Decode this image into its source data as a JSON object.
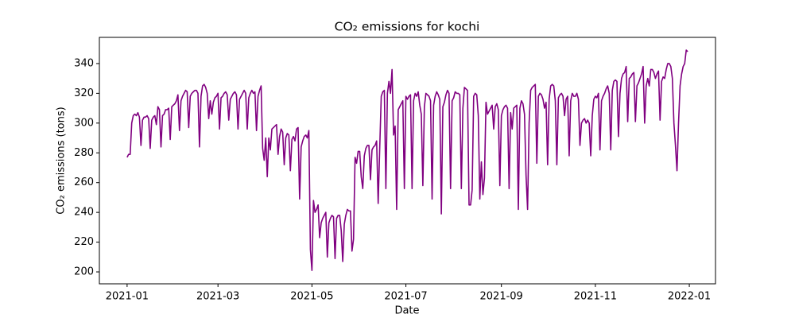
{
  "chart_data": {
    "type": "line",
    "title": "CO₂ emissions for kochi",
    "x_label": "Date",
    "y_label": "CO₂ emissions (tons)",
    "color": "#800080",
    "x": [
      0,
      1,
      2,
      3,
      4,
      5,
      6,
      7,
      8,
      9,
      10,
      11,
      12,
      13,
      14,
      15,
      16,
      17,
      18,
      19,
      20,
      21,
      22,
      23,
      24,
      25,
      26,
      27,
      28,
      29,
      30,
      31,
      32,
      33,
      34,
      35,
      36,
      37,
      38,
      39,
      40,
      41,
      42,
      43,
      44,
      45,
      46,
      47,
      48,
      49,
      50,
      51,
      52,
      53,
      54,
      55,
      56,
      57,
      58,
      59,
      60,
      61,
      62,
      63,
      64,
      65,
      66,
      67,
      68,
      69,
      70,
      71,
      72,
      73,
      74,
      75,
      76,
      77,
      78,
      79,
      80,
      81,
      82,
      83,
      84,
      85,
      86,
      87,
      88,
      89,
      90,
      91,
      92,
      93,
      94,
      95,
      96,
      97,
      98,
      99,
      100,
      101,
      102,
      103,
      104,
      105,
      106,
      107,
      108,
      109,
      110,
      111,
      112,
      113,
      114,
      115,
      116,
      117,
      118,
      119,
      120,
      121,
      122,
      123,
      124,
      125,
      126,
      127,
      128,
      129,
      130,
      131,
      132,
      133,
      134,
      135,
      136,
      137,
      138,
      139,
      140,
      141,
      142,
      143,
      144,
      145,
      146,
      147,
      148,
      149,
      150,
      151,
      152,
      153,
      154,
      155,
      156,
      157,
      158,
      159,
      160,
      161,
      162,
      163,
      164,
      165,
      166,
      167,
      168,
      169,
      170,
      171,
      172,
      173,
      174,
      175,
      176,
      177,
      178,
      179,
      180,
      181,
      182,
      183,
      184,
      185,
      186,
      187,
      188,
      189,
      190,
      191,
      192,
      193,
      194,
      195,
      196,
      197,
      198,
      199,
      200,
      201,
      202,
      203,
      204,
      205,
      206,
      207,
      208,
      209,
      210,
      211,
      212,
      213,
      214,
      215,
      216,
      217,
      218,
      219,
      220,
      221,
      222,
      223,
      224,
      225,
      226,
      227,
      228,
      229,
      230,
      231,
      232,
      233,
      234,
      235,
      236,
      237,
      238,
      239,
      240,
      241,
      242,
      243,
      244,
      245,
      246,
      247,
      248,
      249,
      250,
      251,
      252,
      253,
      254,
      255,
      256,
      257,
      258,
      259,
      260,
      261,
      262,
      263,
      264,
      265,
      266,
      267,
      268,
      269,
      270,
      271,
      272,
      273,
      274,
      275,
      276,
      277,
      278,
      279,
      280,
      281,
      282,
      283,
      284,
      285,
      286,
      287,
      288,
      289,
      290,
      291,
      292,
      293,
      294,
      295,
      296,
      297,
      298,
      299,
      300,
      301,
      302,
      303,
      304,
      305,
      306,
      307,
      308,
      309,
      310,
      311,
      312,
      313,
      314,
      315,
      316,
      317,
      318,
      319,
      320,
      321,
      322,
      323,
      324,
      325,
      326,
      327,
      328,
      329,
      330,
      331,
      332,
      333,
      334,
      335,
      336,
      337,
      338,
      339,
      340,
      341,
      342,
      343,
      344,
      345,
      346,
      347,
      348,
      349,
      350,
      351,
      352,
      353,
      354,
      355,
      356,
      357,
      358,
      359,
      360,
      361,
      362,
      363,
      364
    ],
    "values": [
      277,
      279,
      279,
      300,
      305,
      306,
      305,
      307,
      304,
      285,
      302,
      304,
      304,
      305,
      303,
      283,
      302,
      304,
      305,
      299,
      311,
      309,
      284,
      305,
      306,
      309,
      309,
      310,
      289,
      311,
      312,
      313,
      315,
      319,
      295,
      315,
      318,
      320,
      322,
      321,
      297,
      318,
      320,
      321,
      322,
      322,
      320,
      284,
      318,
      325,
      326,
      324,
      320,
      303,
      315,
      306,
      314,
      317,
      318,
      320,
      296,
      317,
      318,
      320,
      321,
      319,
      302,
      316,
      318,
      320,
      321,
      319,
      296,
      316,
      318,
      320,
      322,
      320,
      296,
      317,
      320,
      322,
      320,
      321,
      295,
      318,
      322,
      325,
      283,
      275,
      290,
      264,
      290,
      282,
      296,
      297,
      298,
      299,
      279,
      291,
      296,
      294,
      272,
      290,
      293,
      292,
      268,
      289,
      291,
      288,
      296,
      297,
      249,
      284,
      288,
      291,
      292,
      290,
      295,
      215,
      201,
      248,
      240,
      242,
      245,
      223,
      233,
      236,
      238,
      240,
      210,
      233,
      236,
      238,
      237,
      209,
      236,
      238,
      238,
      228,
      207,
      232,
      238,
      242,
      241,
      241,
      214,
      222,
      277,
      273,
      281,
      281,
      264,
      256,
      278,
      283,
      285,
      285,
      262,
      282,
      284,
      285,
      288,
      246,
      283,
      318,
      321,
      322,
      256,
      320,
      328,
      320,
      336,
      292,
      298,
      242,
      309,
      311,
      313,
      315,
      256,
      318,
      316,
      318,
      319,
      256,
      315,
      320,
      318,
      321,
      312,
      306,
      258,
      311,
      320,
      319,
      318,
      315,
      249,
      312,
      318,
      321,
      319,
      316,
      239,
      311,
      314,
      319,
      322,
      320,
      256,
      315,
      317,
      321,
      320,
      320,
      319,
      256,
      310,
      324,
      323,
      322,
      245,
      245,
      255,
      318,
      320,
      319,
      305,
      249,
      274,
      252,
      263,
      314,
      306,
      308,
      310,
      312,
      296,
      311,
      313,
      309,
      258,
      305,
      309,
      311,
      312,
      310,
      256,
      307,
      296,
      310,
      311,
      312,
      242,
      310,
      315,
      313,
      306,
      265,
      242,
      300,
      322,
      324,
      325,
      326,
      273,
      318,
      320,
      319,
      316,
      310,
      314,
      272,
      316,
      325,
      326,
      325,
      315,
      272,
      317,
      319,
      320,
      318,
      305,
      316,
      318,
      278,
      315,
      320,
      318,
      318,
      320,
      316,
      285,
      300,
      302,
      303,
      300,
      302,
      300,
      278,
      305,
      316,
      318,
      317,
      320,
      282,
      315,
      318,
      320,
      323,
      325,
      320,
      282,
      322,
      328,
      329,
      328,
      291,
      320,
      330,
      333,
      334,
      338,
      301,
      330,
      331,
      333,
      334,
      301,
      325,
      327,
      330,
      333,
      338,
      300,
      325,
      330,
      325,
      336,
      336,
      334,
      330,
      333,
      335,
      302,
      328,
      331,
      330,
      336,
      340,
      340,
      338,
      330,
      300,
      285,
      268,
      300,
      325,
      333,
      338,
      340,
      349,
      348
    ],
    "xlim": [
      -18,
      382
    ],
    "ylim": [
      192,
      357.6
    ],
    "xticks": [
      {
        "value": 0,
        "label": "2021-01"
      },
      {
        "value": 59,
        "label": "2021-03"
      },
      {
        "value": 120,
        "label": "2021-05"
      },
      {
        "value": 181,
        "label": "2021-07"
      },
      {
        "value": 243,
        "label": "2021-09"
      },
      {
        "value": 304,
        "label": "2021-11"
      },
      {
        "value": 365,
        "label": "2022-01"
      }
    ],
    "yticks": [
      200,
      220,
      240,
      260,
      280,
      300,
      320,
      340
    ]
  }
}
